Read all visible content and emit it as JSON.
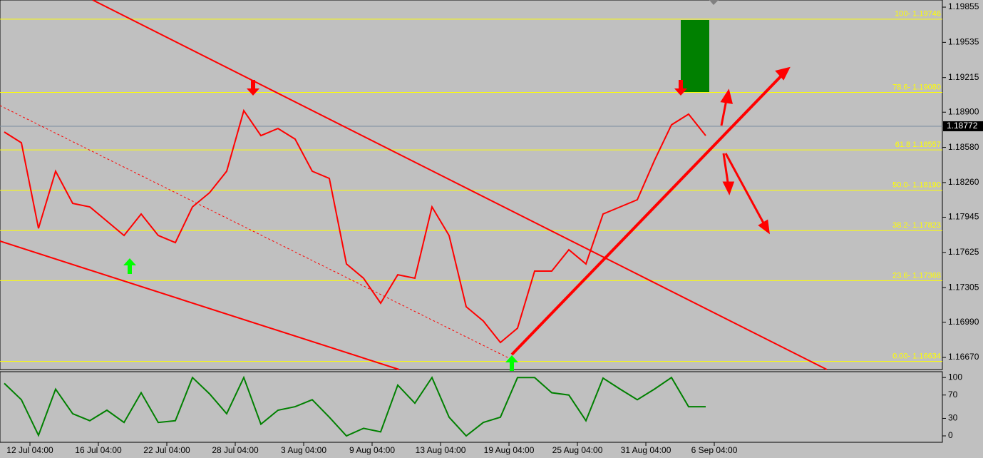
{
  "chart_data": [
    {
      "type": "line",
      "xlim": [
        -0.4375,
        13.333
      ],
      "ylim": [
        1.1656,
        1.1992
      ],
      "xticks": [
        {
          "value": 0,
          "label": "12 Jul 04:00"
        },
        {
          "value": 1,
          "label": "16 Jul 04:00"
        },
        {
          "value": 2,
          "label": "22 Jul 04:00"
        },
        {
          "value": 3,
          "label": "28 Jul 04:00"
        },
        {
          "value": 4,
          "label": "3 Aug 04:00"
        },
        {
          "value": 5,
          "label": "9 Aug 04:00"
        },
        {
          "value": 6,
          "label": "13 Aug 04:00"
        },
        {
          "value": 7,
          "label": "19 Aug 04:00"
        },
        {
          "value": 8,
          "label": "25 Aug 04:00"
        },
        {
          "value": 9,
          "label": "31 Aug 04:00"
        },
        {
          "value": 10,
          "label": "6 Sep 04:00"
        }
      ],
      "yticks": [
        1.19855,
        1.19535,
        1.19215,
        {
          "value": 1.189,
          "label": "1.18900"
        },
        {
          "value": 1.1858,
          "label": "1.18580"
        },
        {
          "value": 1.1826,
          "label": "1.18260"
        },
        1.17945,
        1.17625,
        1.17305,
        {
          "value": 1.1699,
          "label": "1.16990"
        },
        {
          "value": 1.1667,
          "label": "1.16670"
        }
      ],
      "levels": [
        {
          "value": 1.19746,
          "label": "100- 1.19746"
        },
        {
          "value": 1.1908,
          "label": "78.6- 1.19080"
        },
        {
          "value": 1.18557,
          "label": "61.8 1.18557"
        },
        {
          "value": 1.1819,
          "label": "50.0- 1.18190"
        },
        {
          "value": 1.17823,
          "label": "38.2- 1.17823"
        },
        {
          "value": 1.17368,
          "label": "23.6- 1.17368"
        },
        {
          "value": 1.16634,
          "label": "0.00- 1.16634"
        }
      ],
      "level_color": "#ffff00",
      "current_price": 1.18772,
      "x": [
        -0.375,
        -0.125,
        0.125,
        0.375,
        0.625,
        0.875,
        1.125,
        1.375,
        1.625,
        1.875,
        2.125,
        2.375,
        2.625,
        2.875,
        3.125,
        3.375,
        3.625,
        3.875,
        4.125,
        4.375,
        4.625,
        4.875,
        5.125,
        5.375,
        5.625,
        5.875,
        6.125,
        6.375,
        6.625,
        6.875,
        7.125,
        7.375,
        7.625,
        7.875,
        8.125,
        8.375,
        8.625,
        8.875,
        9.125,
        9.375,
        9.625,
        9.875
      ],
      "series": [
        {
          "color": "#ff0000",
          "values": [
            1.1872,
            1.18622,
            1.17844,
            1.18363,
            1.18071,
            1.18039,
            1.17909,
            1.17779,
            1.17974,
            1.17779,
            1.17714,
            1.18039,
            1.18168,
            1.18363,
            1.18914,
            1.18687,
            1.18752,
            1.18655,
            1.18363,
            1.18298,
            1.1752,
            1.1739,
            1.17163,
            1.17422,
            1.1739,
            1.18039,
            1.17779,
            1.17131,
            1.17001,
            1.16806,
            1.16936,
            1.17455,
            1.17455,
            1.17649,
            1.1752,
            1.17974,
            1.18039,
            1.18104,
            1.1846,
            1.18785,
            1.18882,
            1.18687
          ]
        }
      ]
    },
    {
      "type": "line",
      "xlim": [
        -0.4375,
        13.333
      ],
      "ylim": [
        -11,
        110
      ],
      "yticks": [
        100,
        70,
        30,
        0
      ],
      "x": [
        -0.375,
        -0.125,
        0.125,
        0.375,
        0.625,
        0.875,
        1.125,
        1.375,
        1.625,
        1.875,
        2.125,
        2.375,
        2.625,
        2.875,
        3.125,
        3.375,
        3.625,
        3.875,
        4.125,
        4.375,
        4.625,
        4.875,
        5.125,
        5.375,
        5.625,
        5.875,
        6.125,
        6.375,
        6.625,
        6.875,
        7.125,
        7.375,
        7.625,
        7.875,
        8.125,
        8.375,
        8.625,
        8.875,
        9.125,
        9.375,
        9.625,
        9.875
      ],
      "series": [
        {
          "color": "#008000",
          "values": [
            90,
            62,
            1,
            80,
            38,
            26,
            44,
            23,
            74,
            23,
            26,
            100,
            72,
            38,
            100,
            20,
            44,
            50,
            62,
            32,
            0,
            13,
            7,
            87,
            56,
            100,
            32,
            0,
            23,
            32,
            100,
            100,
            74,
            70,
            26,
            99,
            80,
            62,
            80,
            100,
            50,
            50
          ]
        }
      ]
    }
  ]
}
